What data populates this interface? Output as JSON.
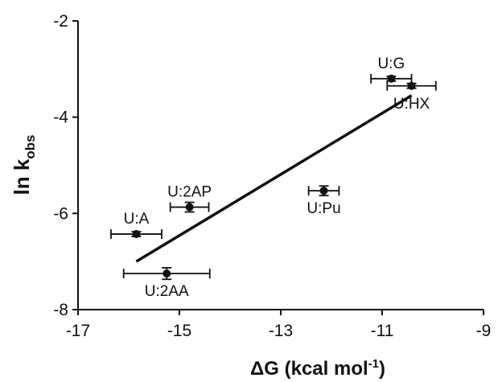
{
  "chart_data": {
    "type": "scatter",
    "xlabel_main": "ΔG (kcal mol",
    "xlabel_sup": "-1",
    "xlabel_end": ")",
    "ylabel_main": "ln k",
    "ylabel_sub": "obs",
    "xlim": [
      -17,
      -9
    ],
    "ylim": [
      -8,
      -2
    ],
    "xticks": [
      -17,
      -15,
      -13,
      -11,
      -9
    ],
    "xtick_labels": [
      "-17",
      "-15",
      "-13",
      "-11",
      "-9"
    ],
    "yticks": [
      -8,
      -6,
      -4,
      -2
    ],
    "ytick_labels": [
      "-8",
      "-6",
      "-4",
      "-2"
    ],
    "grid": false,
    "legend": "none",
    "points": [
      {
        "label": "U:A",
        "x": -15.85,
        "y": -6.43,
        "xerr": 0.5,
        "yerr": 0.05,
        "label_pos": "above"
      },
      {
        "label": "U:2AA",
        "x": -15.25,
        "y": -7.25,
        "xerr": 0.85,
        "yerr": 0.12,
        "label_pos": "below"
      },
      {
        "label": "U:2AP",
        "x": -14.8,
        "y": -5.87,
        "xerr": 0.38,
        "yerr": 0.1,
        "label_pos": "above"
      },
      {
        "label": "U:Pu",
        "x": -12.15,
        "y": -5.53,
        "xerr": 0.3,
        "yerr": 0.1,
        "label_pos": "below"
      },
      {
        "label": "U:G",
        "x": -10.82,
        "y": -3.2,
        "xerr": 0.4,
        "yerr": 0.05,
        "label_pos": "above"
      },
      {
        "label": "U:HX",
        "x": -10.42,
        "y": -3.35,
        "xerr": 0.48,
        "yerr": 0.05,
        "label_pos": "below"
      }
    ],
    "fit_line": {
      "x": [
        -15.85,
        -10.42
      ],
      "y": [
        -7.0,
        -3.55
      ]
    },
    "colors": {
      "ink": "#111111"
    }
  }
}
